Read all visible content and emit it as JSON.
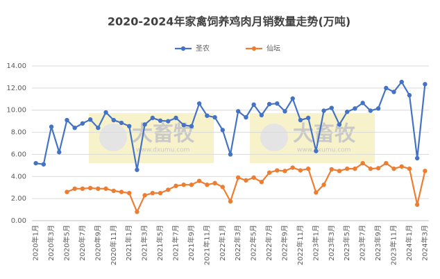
{
  "chart_data": {
    "type": "line",
    "title": "2020-2024年家禽饲养鸡肉月销数量走势(万吨)",
    "watermark": "大畜牧",
    "watermark_url": "www.dxumu.com",
    "categories": [
      "2020年1月",
      null,
      "2020年3月",
      null,
      "2020年5月",
      null,
      "2020年7月",
      null,
      "2020年9月",
      null,
      "2020年11月",
      null,
      "2021年1月",
      null,
      "2021年3月",
      null,
      "2021年5月",
      null,
      "2021年7月",
      null,
      "2021年9月",
      null,
      "2021年11月",
      null,
      "2022年1月",
      null,
      "2022年3月",
      null,
      "2022年5月",
      null,
      "2022年7月",
      null,
      "2022年9月",
      null,
      "2022年11月",
      null,
      "2023年1月",
      null,
      "2023年3月",
      null,
      "2023年5月",
      null,
      "2023年7月",
      null,
      "2023年9月",
      null,
      "2023年11月",
      null,
      "2024年1月",
      null,
      "2024年3月"
    ],
    "series": [
      {
        "name": "圣农",
        "color": "#4472c4",
        "values": [
          5.2,
          5.1,
          8.5,
          6.2,
          9.1,
          8.4,
          8.8,
          9.15,
          8.4,
          9.8,
          9.1,
          8.85,
          8.55,
          4.6,
          8.7,
          9.3,
          9.05,
          9.0,
          9.3,
          8.65,
          8.55,
          10.6,
          9.5,
          9.35,
          8.2,
          6.0,
          9.9,
          9.35,
          10.5,
          9.55,
          10.55,
          10.6,
          9.9,
          11.05,
          9.1,
          9.3,
          6.3,
          9.95,
          10.2,
          8.7,
          9.85,
          10.15,
          10.65,
          9.95,
          10.15,
          12.0,
          11.65,
          12.55,
          11.35,
          5.65,
          12.35
        ]
      },
      {
        "name": "仙坛",
        "color": "#ed7d31",
        "values": [
          null,
          null,
          null,
          null,
          2.6,
          2.9,
          2.9,
          2.95,
          2.9,
          2.9,
          2.7,
          2.6,
          2.5,
          0.8,
          2.3,
          2.5,
          2.5,
          2.8,
          3.15,
          3.25,
          3.25,
          3.6,
          3.25,
          3.4,
          3.05,
          1.75,
          3.9,
          3.65,
          3.9,
          3.5,
          4.35,
          4.55,
          4.5,
          4.8,
          4.55,
          4.7,
          2.55,
          3.25,
          4.65,
          4.5,
          4.7,
          4.7,
          5.2,
          4.7,
          4.75,
          5.2,
          4.7,
          4.9,
          4.7,
          1.45,
          4.5
        ]
      }
    ],
    "ylim": [
      0,
      14
    ],
    "yticks": [
      {
        "value": 0,
        "label": "0.00"
      },
      {
        "value": 2,
        "label": "2.00"
      },
      {
        "value": 4,
        "label": "4.00"
      },
      {
        "value": 6,
        "label": "6.00"
      },
      {
        "value": 8,
        "label": "8.00"
      },
      {
        "value": 10,
        "label": "10.00"
      },
      {
        "value": 12,
        "label": "12.00"
      },
      {
        "value": 14,
        "label": "14.00"
      }
    ],
    "grid": true,
    "legend": "top"
  }
}
